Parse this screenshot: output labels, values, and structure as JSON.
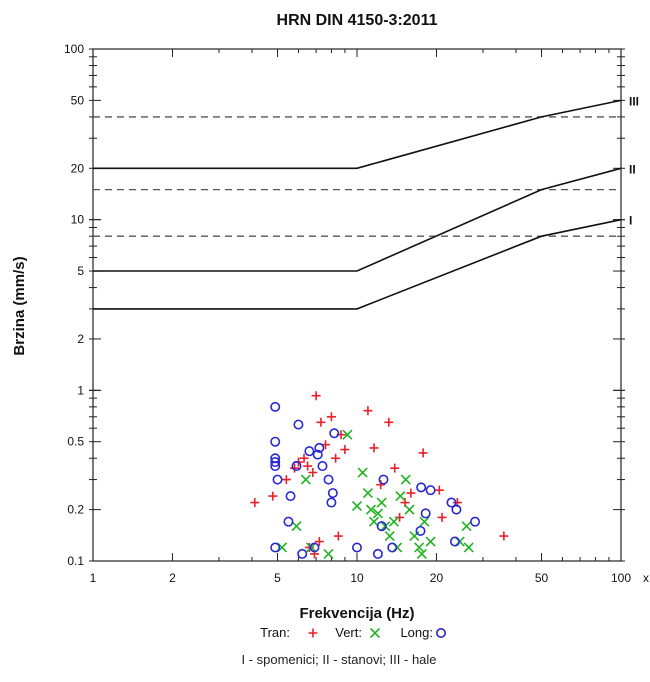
{
  "chart_data": {
    "type": "scatter",
    "title": "HRN DIN 4150-3:2011",
    "xlabel": "Frekvencija (Hz)",
    "ylabel": "Brzina (mm/s)",
    "x_scale": "log",
    "y_scale": "log",
    "xlim": [
      1,
      100
    ],
    "ylim": [
      0.1,
      100
    ],
    "x_ticks": [
      1,
      2,
      5,
      10,
      20,
      50,
      100
    ],
    "y_ticks": [
      0.1,
      0.2,
      0.5,
      1,
      2,
      5,
      10,
      20,
      50,
      100
    ],
    "x_tick_labels": [
      "1",
      "2",
      "5",
      "10",
      "20",
      "50",
      "100"
    ],
    "y_tick_labels": [
      "0.1",
      "0.2",
      "0.5",
      "1",
      "2",
      "5",
      "10",
      "20",
      "50",
      "100"
    ],
    "x_axis_edge_mark": "x",
    "limit_lines": [
      {
        "label": "III",
        "x": [
          1,
          10,
          50,
          100
        ],
        "y": [
          20,
          20,
          40,
          50
        ]
      },
      {
        "label": "II",
        "x": [
          1,
          10,
          50,
          100
        ],
        "y": [
          5,
          5,
          15,
          20
        ]
      },
      {
        "label": "I",
        "x": [
          1,
          10,
          50,
          100
        ],
        "y": [
          3,
          3,
          8,
          10
        ]
      }
    ],
    "dashed_lines": [
      40,
      15,
      8
    ],
    "series": [
      {
        "name": "Tran:",
        "marker": "+",
        "color": "#e8202a",
        "points": [
          [
            4.1,
            0.22
          ],
          [
            4.8,
            0.24
          ],
          [
            5.4,
            0.3
          ],
          [
            5.8,
            0.35
          ],
          [
            6.0,
            0.38
          ],
          [
            6.3,
            0.4
          ],
          [
            6.5,
            0.36
          ],
          [
            6.8,
            0.33
          ],
          [
            7.0,
            0.93
          ],
          [
            7.3,
            0.65
          ],
          [
            7.6,
            0.48
          ],
          [
            8.0,
            0.7
          ],
          [
            8.3,
            0.4
          ],
          [
            8.7,
            0.55
          ],
          [
            6.6,
            0.12
          ],
          [
            7.2,
            0.13
          ],
          [
            8.5,
            0.14
          ],
          [
            11.0,
            0.76
          ],
          [
            11.6,
            0.46
          ],
          [
            12.3,
            0.28
          ],
          [
            13.2,
            0.65
          ],
          [
            13.9,
            0.35
          ],
          [
            14.5,
            0.18
          ],
          [
            15.2,
            0.22
          ],
          [
            16.0,
            0.25
          ],
          [
            17.8,
            0.43
          ],
          [
            20.5,
            0.26
          ],
          [
            21.0,
            0.18
          ],
          [
            24.0,
            0.22
          ],
          [
            36.0,
            0.14
          ],
          [
            6.9,
            0.11
          ],
          [
            9.0,
            0.45
          ]
        ]
      },
      {
        "name": "Vert:",
        "marker": "x",
        "color": "#22b322",
        "points": [
          [
            5.2,
            0.12
          ],
          [
            5.9,
            0.16
          ],
          [
            6.4,
            0.3
          ],
          [
            6.7,
            0.12
          ],
          [
            7.8,
            0.11
          ],
          [
            9.2,
            0.55
          ],
          [
            10.5,
            0.33
          ],
          [
            11.0,
            0.25
          ],
          [
            11.3,
            0.2
          ],
          [
            11.6,
            0.17
          ],
          [
            12.0,
            0.19
          ],
          [
            12.4,
            0.22
          ],
          [
            12.8,
            0.16
          ],
          [
            13.3,
            0.14
          ],
          [
            13.8,
            0.17
          ],
          [
            14.2,
            0.12
          ],
          [
            14.6,
            0.24
          ],
          [
            15.3,
            0.3
          ],
          [
            16.5,
            0.14
          ],
          [
            17.2,
            0.12
          ],
          [
            17.6,
            0.11
          ],
          [
            18.0,
            0.17
          ],
          [
            19.0,
            0.13
          ],
          [
            24.5,
            0.13
          ],
          [
            26.0,
            0.16
          ],
          [
            26.5,
            0.12
          ],
          [
            10.0,
            0.21
          ],
          [
            15.8,
            0.2
          ]
        ]
      },
      {
        "name": "Long:",
        "marker": "o",
        "color": "#2828d0",
        "points": [
          [
            4.9,
            0.8
          ],
          [
            4.9,
            0.5
          ],
          [
            4.9,
            0.4
          ],
          [
            4.9,
            0.38
          ],
          [
            4.9,
            0.36
          ],
          [
            4.9,
            0.12
          ],
          [
            5.0,
            0.3
          ],
          [
            5.5,
            0.17
          ],
          [
            5.6,
            0.24
          ],
          [
            5.9,
            0.36
          ],
          [
            6.0,
            0.63
          ],
          [
            6.2,
            0.11
          ],
          [
            6.6,
            0.44
          ],
          [
            7.2,
            0.46
          ],
          [
            7.4,
            0.36
          ],
          [
            7.8,
            0.3
          ],
          [
            8.0,
            0.22
          ],
          [
            8.1,
            0.25
          ],
          [
            8.2,
            0.56
          ],
          [
            10.0,
            0.12
          ],
          [
            12.0,
            0.11
          ],
          [
            12.4,
            0.16
          ],
          [
            12.6,
            0.3
          ],
          [
            13.6,
            0.12
          ],
          [
            17.4,
            0.15
          ],
          [
            17.5,
            0.27
          ],
          [
            18.2,
            0.19
          ],
          [
            19.0,
            0.26
          ],
          [
            22.8,
            0.22
          ],
          [
            23.5,
            0.13
          ],
          [
            23.8,
            0.2
          ],
          [
            28.0,
            0.17
          ],
          [
            6.9,
            0.12
          ],
          [
            7.1,
            0.42
          ]
        ]
      }
    ],
    "legend_position": "bottom-center",
    "footnote": "I - spomenici; II - stanovi; III - hale"
  }
}
